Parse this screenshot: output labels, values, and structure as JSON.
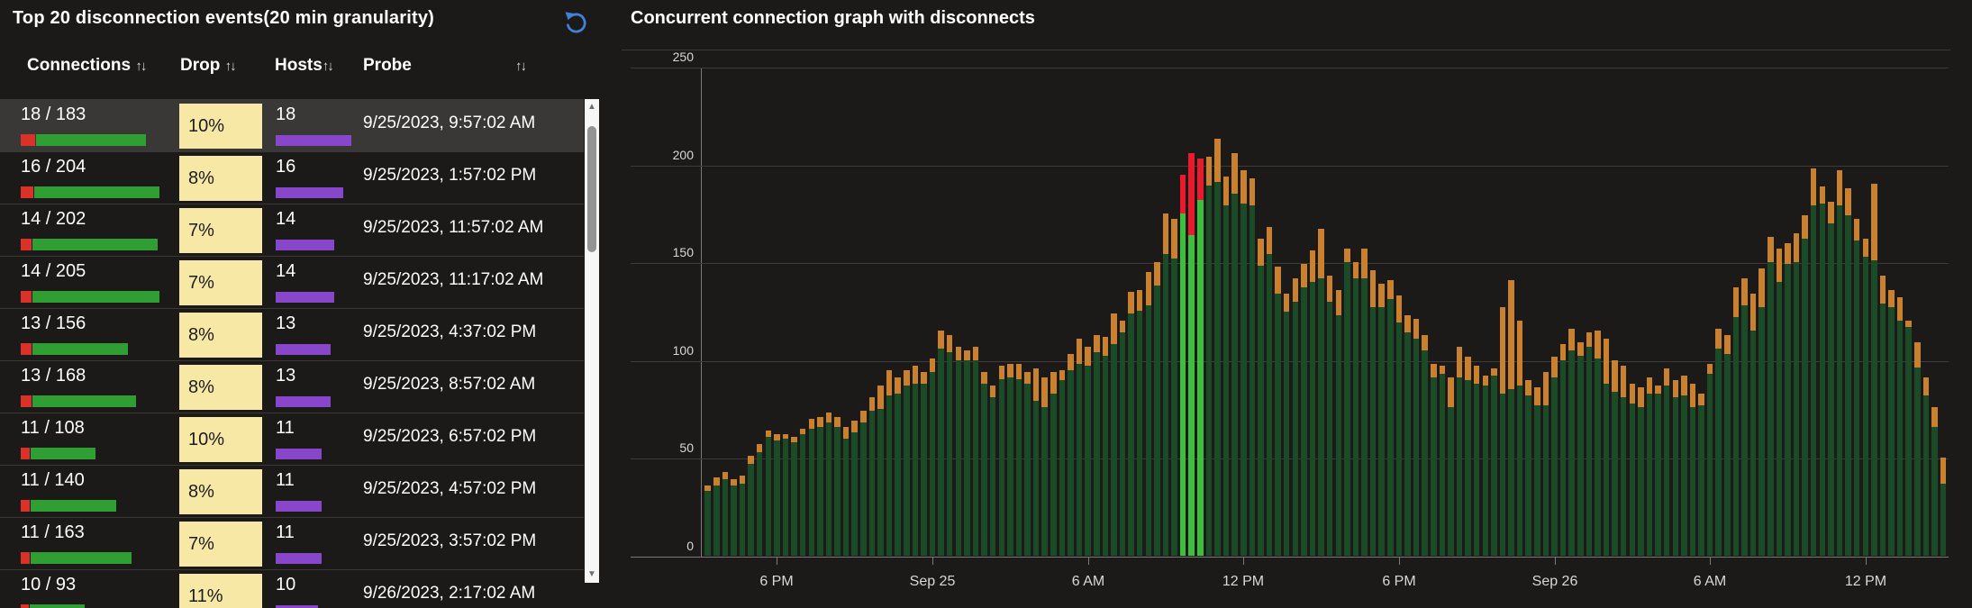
{
  "colors": {
    "background": "#1b1a19",
    "row_highlight": "#3a3836",
    "badge_bg": "#f8e8a6",
    "table_green": "#2f9e33",
    "table_red": "#dc3127",
    "hosts_purple": "#8847cb",
    "undo_blue": "#3f83d8",
    "chart_green": "#1b4a27",
    "chart_orange": "#c9812f",
    "event_green": "#3ebd3f",
    "event_red": "#e81b2d"
  },
  "icons": {
    "undo": "undo-arrow",
    "sort": "↑↓",
    "scroll_up": "▲",
    "scroll_down": "▼"
  },
  "panel_table": {
    "title": "Top 20 disconnection events(20 min granularity)",
    "columns": [
      {
        "label": "Connections",
        "sort": "↑↓"
      },
      {
        "label": "Drop",
        "sort": "↑↓"
      },
      {
        "label": "Hosts",
        "sort": "↑↓"
      },
      {
        "label": "Probe",
        "sort": "↑↓"
      }
    ],
    "rows": [
      {
        "connections": "18 / 183",
        "drops": 18,
        "total": 183,
        "drop": "10%",
        "hosts": 18,
        "probe": "9/25/2023, 9:57:02 AM",
        "highlighted": true
      },
      {
        "connections": "16 / 204",
        "drops": 16,
        "total": 204,
        "drop": "8%",
        "hosts": 16,
        "probe": "9/25/2023, 1:57:02 PM",
        "highlighted": false
      },
      {
        "connections": "14 / 202",
        "drops": 14,
        "total": 202,
        "drop": "7%",
        "hosts": 14,
        "probe": "9/25/2023, 11:57:02 AM",
        "highlighted": false
      },
      {
        "connections": "14 / 205",
        "drops": 14,
        "total": 205,
        "drop": "7%",
        "hosts": 14,
        "probe": "9/25/2023, 11:17:02 AM",
        "highlighted": false
      },
      {
        "connections": "13 / 156",
        "drops": 13,
        "total": 156,
        "drop": "8%",
        "hosts": 13,
        "probe": "9/25/2023, 4:37:02 PM",
        "highlighted": false
      },
      {
        "connections": "13 / 168",
        "drops": 13,
        "total": 168,
        "drop": "8%",
        "hosts": 13,
        "probe": "9/25/2023, 8:57:02 AM",
        "highlighted": false
      },
      {
        "connections": "11 / 108",
        "drops": 11,
        "total": 108,
        "drop": "10%",
        "hosts": 11,
        "probe": "9/25/2023, 6:57:02 PM",
        "highlighted": false
      },
      {
        "connections": "11 / 140",
        "drops": 11,
        "total": 140,
        "drop": "8%",
        "hosts": 11,
        "probe": "9/25/2023, 4:57:02 PM",
        "highlighted": false
      },
      {
        "connections": "11 / 163",
        "drops": 11,
        "total": 163,
        "drop": "7%",
        "hosts": 11,
        "probe": "9/25/2023, 3:57:02 PM",
        "highlighted": false
      },
      {
        "connections": "10 / 93",
        "drops": 10,
        "total": 93,
        "drop": "11%",
        "hosts": 10,
        "probe": "9/26/2023, 2:17:02 AM",
        "highlighted": false
      }
    ]
  },
  "chart_data": {
    "type": "bar",
    "stacked": true,
    "title": "Concurrent connection graph with disconnects",
    "xlabel": "",
    "ylabel": "",
    "ylim": [
      0,
      250
    ],
    "yticks": [
      0,
      50,
      100,
      150,
      200,
      250
    ],
    "grid": true,
    "bar_interval_minutes": 20,
    "x_tick_labels": [
      "6 PM",
      "Sep 25",
      "6 AM",
      "12 PM",
      "6 PM",
      "Sep 26",
      "6 AM",
      "12 PM"
    ],
    "x_tick_bar_index": [
      8,
      26,
      44,
      62,
      80,
      98,
      116,
      134
    ],
    "bars_format": "[total_connections, top_segment(disconnected), 1_if_disconnect_event]",
    "segment_legend": {
      "base": "connected (dark green)",
      "top": "disconnected (orange)",
      "event_base": "connected during event (bright green)",
      "event_top": "dropped during event (red)"
    },
    "bars": [
      [
        36,
        3
      ],
      [
        40,
        4
      ],
      [
        43,
        4
      ],
      [
        39,
        3
      ],
      [
        41,
        4
      ],
      [
        51,
        4
      ],
      [
        57,
        4
      ],
      [
        64,
        3
      ],
      [
        62,
        3
      ],
      [
        62,
        2
      ],
      [
        61,
        3
      ],
      [
        65,
        3
      ],
      [
        70,
        5
      ],
      [
        71,
        5
      ],
      [
        73,
        5
      ],
      [
        71,
        5
      ],
      [
        66,
        6
      ],
      [
        69,
        6
      ],
      [
        74,
        6
      ],
      [
        81,
        7
      ],
      [
        87,
        12
      ],
      [
        95,
        13
      ],
      [
        91,
        8
      ],
      [
        95,
        8
      ],
      [
        97,
        9
      ],
      [
        94,
        6
      ],
      [
        101,
        7
      ],
      [
        115,
        9
      ],
      [
        113,
        9
      ],
      [
        107,
        7
      ],
      [
        105,
        5
      ],
      [
        107,
        7
      ],
      [
        94,
        6
      ],
      [
        87,
        6
      ],
      [
        97,
        7
      ],
      [
        98,
        7
      ],
      [
        98,
        8
      ],
      [
        94,
        6
      ],
      [
        96,
        17
      ],
      [
        91,
        15
      ],
      [
        94,
        11
      ],
      [
        95,
        5
      ],
      [
        103,
        8
      ],
      [
        111,
        13
      ],
      [
        107,
        10
      ],
      [
        113,
        9
      ],
      [
        112,
        10
      ],
      [
        124,
        16
      ],
      [
        120,
        6
      ],
      [
        135,
        11
      ],
      [
        136,
        11
      ],
      [
        145,
        17
      ],
      [
        150,
        12
      ],
      [
        175,
        21
      ],
      [
        172,
        20
      ],
      [
        195,
        20,
        1
      ],
      [
        206,
        42,
        1
      ],
      [
        203,
        21,
        1
      ],
      [
        204,
        15
      ],
      [
        213,
        22
      ],
      [
        194,
        15
      ],
      [
        206,
        21
      ],
      [
        197,
        17
      ],
      [
        193,
        14
      ],
      [
        162,
        14
      ],
      [
        168,
        14
      ],
      [
        148,
        14
      ],
      [
        134,
        9
      ],
      [
        142,
        12
      ],
      [
        149,
        12
      ],
      [
        156,
        16
      ],
      [
        167,
        25
      ],
      [
        143,
        13
      ],
      [
        136,
        13
      ],
      [
        157,
        7
      ],
      [
        150,
        8
      ],
      [
        157,
        15
      ],
      [
        146,
        19
      ],
      [
        139,
        12
      ],
      [
        141,
        10
      ],
      [
        133,
        14
      ],
      [
        123,
        9
      ],
      [
        121,
        10
      ],
      [
        113,
        8
      ],
      [
        98,
        7
      ],
      [
        97,
        4
      ],
      [
        91,
        15
      ],
      [
        107,
        16
      ],
      [
        102,
        12
      ],
      [
        97,
        9
      ],
      [
        92,
        5
      ],
      [
        96,
        4
      ],
      [
        127,
        44
      ],
      [
        141,
        56
      ],
      [
        120,
        33
      ],
      [
        90,
        8
      ],
      [
        86,
        9
      ],
      [
        94,
        17
      ],
      [
        102,
        11
      ],
      [
        108,
        8
      ],
      [
        116,
        11
      ],
      [
        109,
        7
      ],
      [
        114,
        7
      ],
      [
        115,
        14
      ],
      [
        111,
        23
      ],
      [
        100,
        16
      ],
      [
        97,
        16
      ],
      [
        88,
        10
      ],
      [
        86,
        10
      ],
      [
        91,
        8
      ],
      [
        87,
        4
      ],
      [
        96,
        9
      ],
      [
        90,
        9
      ],
      [
        92,
        10
      ],
      [
        88,
        12
      ],
      [
        83,
        6
      ],
      [
        98,
        5
      ],
      [
        116,
        10
      ],
      [
        113,
        10
      ],
      [
        137,
        15
      ],
      [
        142,
        14
      ],
      [
        134,
        19
      ],
      [
        147,
        20
      ],
      [
        163,
        13
      ],
      [
        157,
        17
      ],
      [
        160,
        11
      ],
      [
        165,
        15
      ],
      [
        174,
        12
      ],
      [
        198,
        19
      ],
      [
        189,
        9
      ],
      [
        181,
        11
      ],
      [
        197,
        18
      ],
      [
        188,
        14
      ],
      [
        172,
        11
      ],
      [
        162,
        9
      ],
      [
        190,
        39
      ],
      [
        143,
        14
      ],
      [
        136,
        9
      ],
      [
        132,
        12
      ],
      [
        120,
        3
      ],
      [
        109,
        13
      ],
      [
        91,
        9
      ],
      [
        76,
        10
      ],
      [
        50,
        13
      ]
    ]
  }
}
